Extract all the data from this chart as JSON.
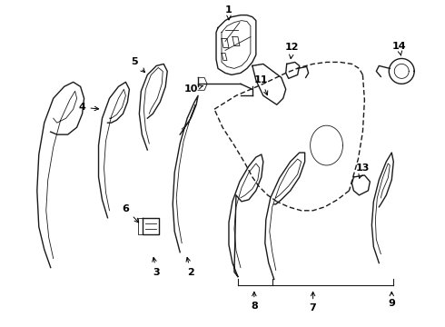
{
  "background_color": "#ffffff",
  "fig_width": 4.9,
  "fig_height": 3.6,
  "dpi": 100,
  "col": "#1a1a1a",
  "lw_main": 1.0,
  "lw_thin": 0.6
}
